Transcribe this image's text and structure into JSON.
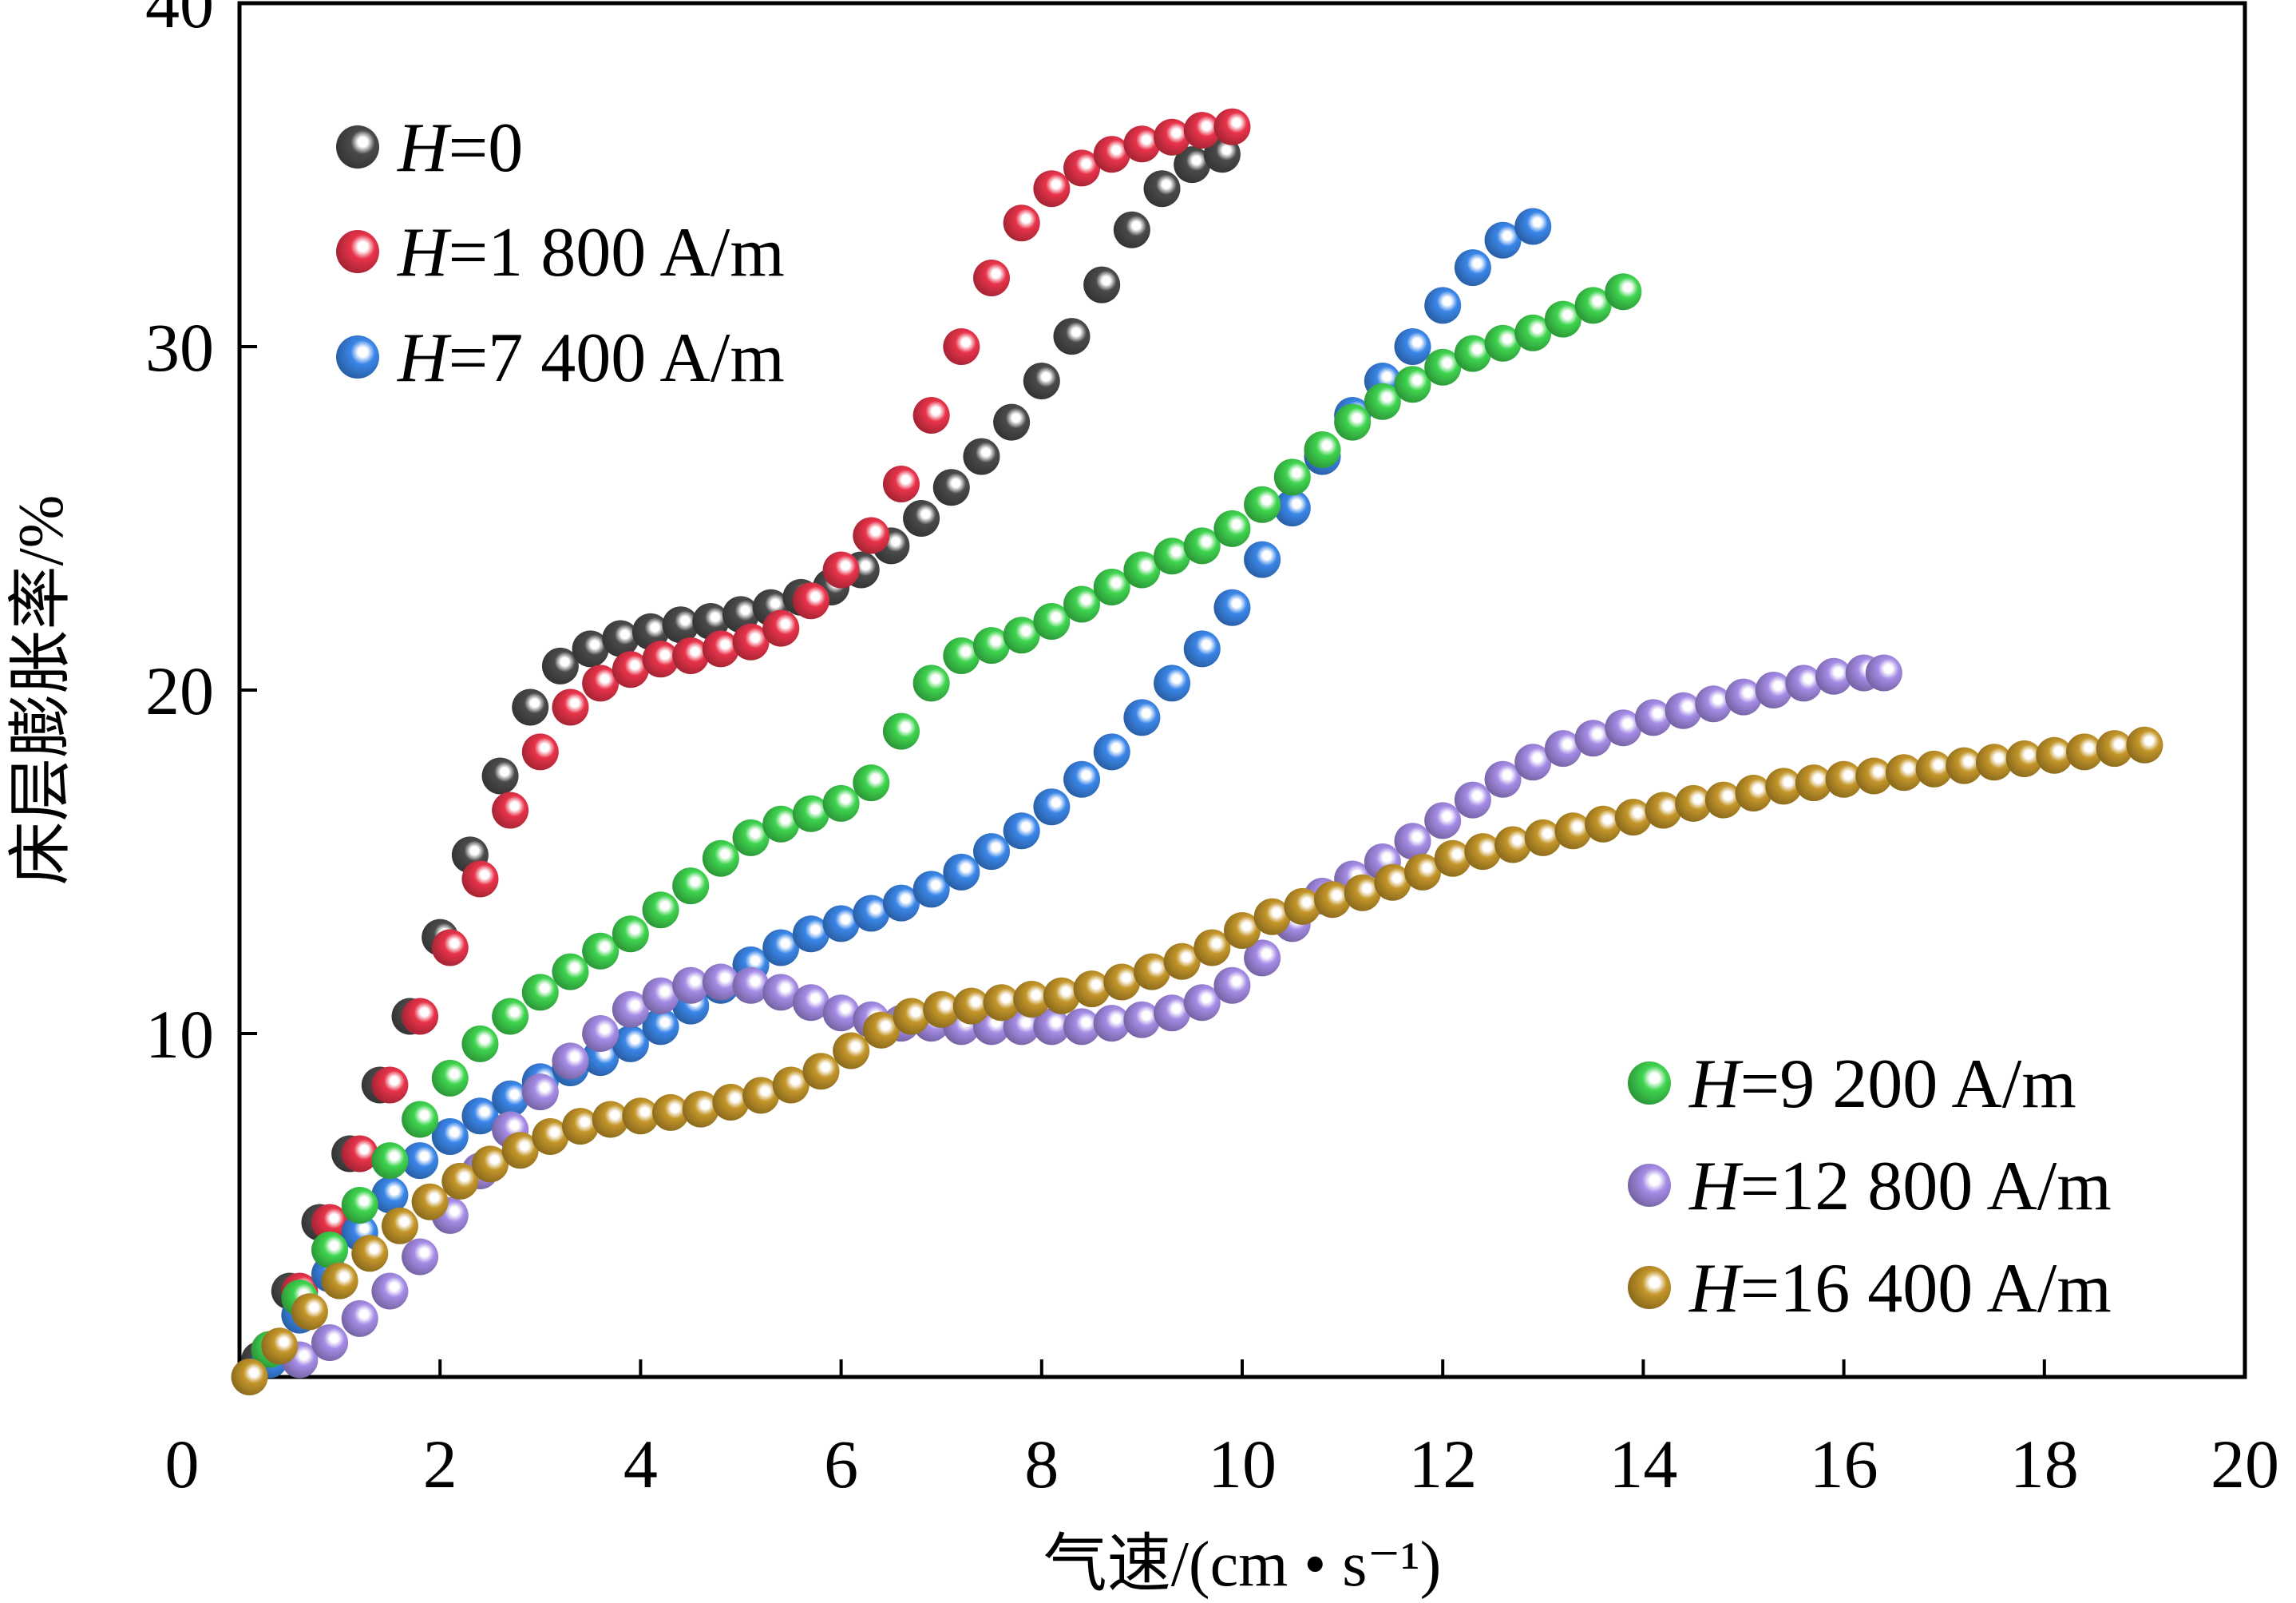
{
  "chart_data": {
    "type": "scatter",
    "xlabel": "气速/(cm • s⁻¹)",
    "ylabel": "床层膨胀率/%",
    "xlim": [
      0,
      20
    ],
    "ylim": [
      0,
      40
    ],
    "x_ticks": [
      "0",
      "2",
      "4",
      "6",
      "8",
      "10",
      "12",
      "14",
      "16",
      "18",
      "20"
    ],
    "y_ticks": [
      "10",
      "20",
      "30",
      "40"
    ],
    "x_tick_values": [
      0,
      2,
      4,
      6,
      8,
      10,
      12,
      14,
      16,
      18,
      20
    ],
    "y_tick_values": [
      10,
      20,
      30,
      40
    ],
    "grid": false,
    "legend": [
      {
        "placement": "top-left",
        "entries": [
          0,
          1,
          2
        ]
      },
      {
        "placement": "bottom-right",
        "entries": [
          3,
          4,
          5
        ]
      }
    ],
    "series": [
      {
        "name_prefix": "H",
        "name_suffix": "=0",
        "color": "#4a4a4a",
        "x": [
          0.2,
          0.5,
          0.8,
          1.1,
          1.4,
          1.7,
          2.0,
          2.3,
          2.6,
          2.9,
          3.2,
          3.5,
          3.8,
          4.1,
          4.4,
          4.7,
          5.0,
          5.3,
          5.6,
          5.9,
          6.2,
          6.5,
          6.8,
          7.1,
          7.4,
          7.7,
          8.0,
          8.3,
          8.6,
          8.9,
          9.2,
          9.5,
          9.8
        ],
        "y": [
          0.5,
          2.5,
          4.5,
          6.5,
          8.5,
          10.5,
          12.8,
          15.2,
          17.5,
          19.5,
          20.7,
          21.2,
          21.5,
          21.7,
          21.9,
          22.0,
          22.2,
          22.4,
          22.7,
          23.0,
          23.5,
          24.2,
          25.0,
          25.9,
          26.8,
          27.8,
          29.0,
          30.3,
          31.8,
          33.4,
          34.6,
          35.3,
          35.6
        ]
      },
      {
        "name_prefix": "H",
        "name_suffix": "=1 800 A/m",
        "color": "#e8334a",
        "x": [
          0.3,
          0.6,
          0.9,
          1.2,
          1.5,
          1.8,
          2.1,
          2.4,
          2.7,
          3.0,
          3.3,
          3.6,
          3.9,
          4.2,
          4.5,
          4.8,
          5.1,
          5.4,
          5.7,
          6.0,
          6.3,
          6.6,
          6.9,
          7.2,
          7.5,
          7.8,
          8.1,
          8.4,
          8.7,
          9.0,
          9.3,
          9.6,
          9.9
        ],
        "y": [
          0.8,
          2.5,
          4.5,
          6.5,
          8.5,
          10.5,
          12.5,
          14.5,
          16.5,
          18.2,
          19.5,
          20.2,
          20.6,
          20.9,
          21.0,
          21.2,
          21.4,
          21.8,
          22.6,
          23.5,
          24.5,
          26.0,
          28.0,
          30.0,
          32.0,
          33.6,
          34.6,
          35.2,
          35.6,
          35.9,
          36.1,
          36.3,
          36.4
        ]
      },
      {
        "name_prefix": "H",
        "name_suffix": "=7 400 A/m",
        "color": "#3a86e8",
        "x": [
          0.3,
          0.6,
          0.9,
          1.2,
          1.5,
          1.8,
          2.1,
          2.4,
          2.7,
          3.0,
          3.3,
          3.6,
          3.9,
          4.2,
          4.5,
          4.8,
          5.1,
          5.4,
          5.7,
          6.0,
          6.3,
          6.6,
          6.9,
          7.2,
          7.5,
          7.8,
          8.1,
          8.4,
          8.7,
          9.0,
          9.3,
          9.6,
          9.9,
          10.2,
          10.5,
          10.8,
          11.1,
          11.4,
          11.7,
          12.0,
          12.3,
          12.6,
          12.9
        ],
        "y": [
          0.5,
          1.8,
          3.0,
          4.2,
          5.3,
          6.3,
          7.0,
          7.6,
          8.1,
          8.6,
          9.0,
          9.3,
          9.7,
          10.2,
          10.8,
          11.4,
          12.0,
          12.5,
          12.9,
          13.2,
          13.5,
          13.8,
          14.2,
          14.7,
          15.3,
          15.9,
          16.6,
          17.4,
          18.2,
          19.2,
          20.2,
          21.2,
          22.4,
          23.8,
          25.3,
          26.8,
          28.0,
          29.0,
          30.0,
          31.2,
          32.3,
          33.1,
          33.5
        ]
      },
      {
        "name_prefix": "H",
        "name_suffix": "=9 200 A/m",
        "color": "#3fd44f",
        "x": [
          0.3,
          0.6,
          0.9,
          1.2,
          1.5,
          1.8,
          2.1,
          2.4,
          2.7,
          3.0,
          3.3,
          3.6,
          3.9,
          4.2,
          4.5,
          4.8,
          5.1,
          5.4,
          5.7,
          6.0,
          6.3,
          6.6,
          6.9,
          7.2,
          7.5,
          7.8,
          8.1,
          8.4,
          8.7,
          9.0,
          9.3,
          9.6,
          9.9,
          10.2,
          10.5,
          10.8,
          11.1,
          11.4,
          11.7,
          12.0,
          12.3,
          12.6,
          12.9,
          13.2,
          13.5,
          13.8
        ],
        "y": [
          0.8,
          2.3,
          3.7,
          5.0,
          6.3,
          7.5,
          8.7,
          9.7,
          10.5,
          11.2,
          11.8,
          12.4,
          12.9,
          13.6,
          14.3,
          15.1,
          15.7,
          16.1,
          16.4,
          16.7,
          17.3,
          18.8,
          20.2,
          21.0,
          21.3,
          21.6,
          22.0,
          22.5,
          23.0,
          23.5,
          23.9,
          24.2,
          24.7,
          25.4,
          26.2,
          27.0,
          27.8,
          28.4,
          28.9,
          29.4,
          29.8,
          30.1,
          30.4,
          30.8,
          31.2,
          31.6
        ]
      },
      {
        "name_prefix": "H",
        "name_suffix": "=12 800 A/m",
        "color": "#a58ce6",
        "x": [
          0.6,
          0.9,
          1.2,
          1.5,
          1.8,
          2.1,
          2.4,
          2.7,
          3.0,
          3.3,
          3.6,
          3.9,
          4.2,
          4.5,
          4.8,
          5.1,
          5.4,
          5.7,
          6.0,
          6.3,
          6.6,
          6.9,
          7.2,
          7.5,
          7.8,
          8.1,
          8.4,
          8.7,
          9.0,
          9.3,
          9.6,
          9.9,
          10.2,
          10.5,
          10.8,
          11.1,
          11.4,
          11.7,
          12.0,
          12.3,
          12.6,
          12.9,
          13.2,
          13.5,
          13.8,
          14.1,
          14.4,
          14.7,
          15.0,
          15.3,
          15.6,
          15.9,
          16.2,
          16.4
        ],
        "y": [
          0.5,
          1.0,
          1.7,
          2.5,
          3.5,
          4.7,
          6.0,
          7.2,
          8.3,
          9.2,
          10.0,
          10.7,
          11.1,
          11.4,
          11.5,
          11.4,
          11.2,
          10.9,
          10.6,
          10.4,
          10.3,
          10.3,
          10.2,
          10.2,
          10.2,
          10.2,
          10.2,
          10.3,
          10.4,
          10.6,
          10.9,
          11.4,
          12.2,
          13.2,
          14.0,
          14.5,
          15.0,
          15.6,
          16.2,
          16.8,
          17.4,
          17.9,
          18.3,
          18.6,
          18.9,
          19.2,
          19.4,
          19.6,
          19.8,
          20.0,
          20.2,
          20.4,
          20.5,
          20.5
        ]
      },
      {
        "name_prefix": "H",
        "name_suffix": "=16 400 A/m",
        "color": "#c4962a",
        "x": [
          0.1,
          0.4,
          0.7,
          1.0,
          1.3,
          1.6,
          1.9,
          2.2,
          2.5,
          2.8,
          3.1,
          3.4,
          3.7,
          4.0,
          4.3,
          4.6,
          4.9,
          5.2,
          5.5,
          5.8,
          6.1,
          6.4,
          6.7,
          7.0,
          7.3,
          7.6,
          7.9,
          8.2,
          8.5,
          8.8,
          9.1,
          9.4,
          9.7,
          10.0,
          10.3,
          10.6,
          10.9,
          11.2,
          11.5,
          11.8,
          12.1,
          12.4,
          12.7,
          13.0,
          13.3,
          13.6,
          13.9,
          14.2,
          14.5,
          14.8,
          15.1,
          15.4,
          15.7,
          16.0,
          16.3,
          16.6,
          16.9,
          17.2,
          17.5,
          17.8,
          18.1,
          18.4,
          18.7,
          19.0
        ],
        "y": [
          0.0,
          0.9,
          1.9,
          2.8,
          3.6,
          4.4,
          5.1,
          5.7,
          6.2,
          6.6,
          7.0,
          7.3,
          7.5,
          7.6,
          7.7,
          7.8,
          8.0,
          8.2,
          8.5,
          8.9,
          9.5,
          10.1,
          10.5,
          10.7,
          10.8,
          10.9,
          11.0,
          11.1,
          11.3,
          11.5,
          11.8,
          12.1,
          12.5,
          13.0,
          13.4,
          13.7,
          13.9,
          14.1,
          14.4,
          14.7,
          15.1,
          15.3,
          15.5,
          15.7,
          15.9,
          16.1,
          16.3,
          16.5,
          16.7,
          16.8,
          17.0,
          17.2,
          17.3,
          17.4,
          17.5,
          17.6,
          17.7,
          17.8,
          17.9,
          18.0,
          18.1,
          18.2,
          18.3,
          18.4
        ]
      }
    ]
  }
}
